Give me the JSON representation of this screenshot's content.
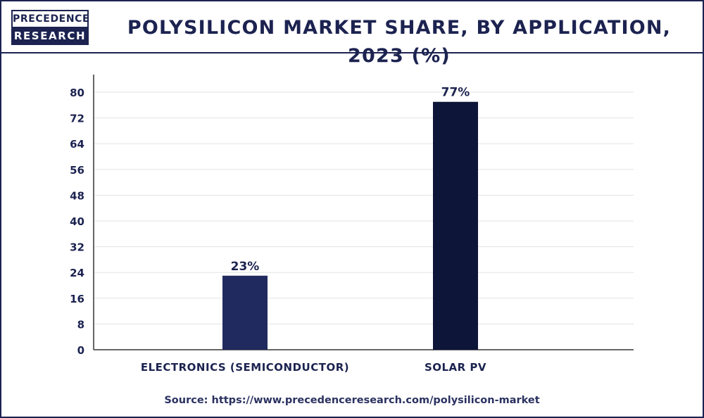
{
  "brand": {
    "logo_top": "PRECEDENCE",
    "logo_bottom": "RESEARCH"
  },
  "title": "POLYSILICON MARKET SHARE, BY APPLICATION, 2023 (%)",
  "source": "Source: https://www.precedenceresearch.com/polysilicon-market",
  "chart_data": {
    "type": "bar",
    "categories": [
      "ELECTRONICS (SEMICONDUCTOR)",
      "SOLAR PV"
    ],
    "values": [
      23,
      77
    ],
    "data_labels": [
      "23%",
      "77%"
    ],
    "colors": [
      "#212a5e",
      "#0d1538"
    ],
    "ylim": [
      0,
      80
    ],
    "yticks": [
      0,
      8,
      16,
      24,
      32,
      40,
      48,
      56,
      64,
      72,
      80
    ],
    "grid": true
  }
}
